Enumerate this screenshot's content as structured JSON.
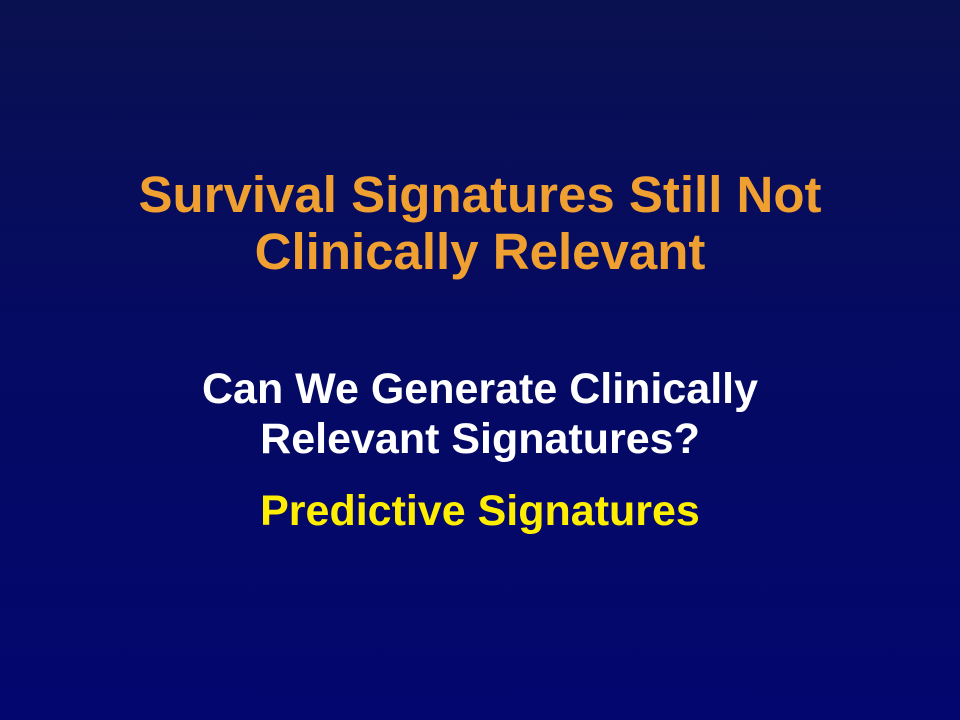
{
  "slide": {
    "title_lines": [
      "Survival Signatures Still Not",
      "Clinically Relevant"
    ],
    "question_lines": [
      "Can We Generate Clinically",
      "Relevant Signatures?"
    ],
    "answer": "Predictive Signatures",
    "colors": {
      "background_top": "#0a1150",
      "background_bottom": "#03066e",
      "title": "#f0a030",
      "question": "#ffffff",
      "answer": "#ffee00"
    }
  }
}
